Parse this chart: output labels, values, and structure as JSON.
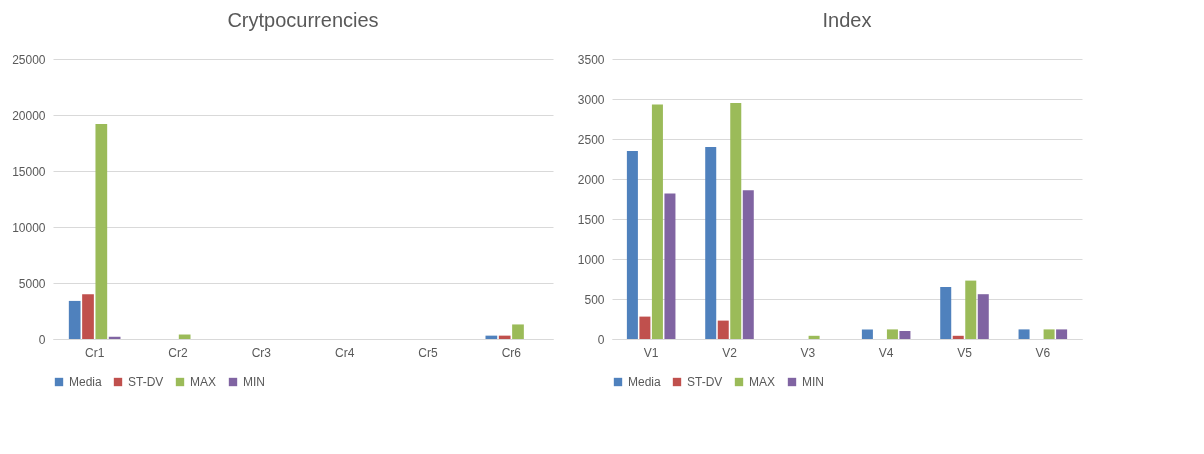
{
  "chart_data": [
    {
      "type": "bar",
      "title": "Crytpocurrencies",
      "categories": [
        "Cr1",
        "Cr2",
        "Cr3",
        "Cr4",
        "Cr5",
        "Cr6"
      ],
      "ylim": [
        0,
        25000
      ],
      "yticks": [
        0,
        5000,
        10000,
        15000,
        20000,
        25000
      ],
      "grid": "y",
      "legend": "bottom",
      "series": [
        {
          "name": "Media",
          "color": "#4f81bd",
          "values": [
            3400,
            0,
            0,
            0,
            0,
            300
          ]
        },
        {
          "name": "ST-DV",
          "color": "#c0504d",
          "values": [
            4000,
            0,
            0,
            0,
            0,
            300
          ]
        },
        {
          "name": "MAX",
          "color": "#9bbb59",
          "values": [
            19200,
            400,
            0,
            0,
            0,
            1300
          ]
        },
        {
          "name": "MIN",
          "color": "#8064a2",
          "values": [
            200,
            0,
            0,
            0,
            0,
            0
          ]
        }
      ]
    },
    {
      "type": "bar",
      "title": "Index",
      "categories": [
        "V1",
        "V2",
        "V3",
        "V4",
        "V5",
        "V6"
      ],
      "ylim": [
        0,
        3500
      ],
      "yticks": [
        0,
        500,
        1000,
        1500,
        2000,
        2500,
        3000,
        3500
      ],
      "grid": "y",
      "legend": "bottom",
      "series": [
        {
          "name": "Media",
          "color": "#4f81bd",
          "values": [
            2350,
            2400,
            0,
            120,
            650,
            120
          ]
        },
        {
          "name": "ST-DV",
          "color": "#c0504d",
          "values": [
            280,
            230,
            0,
            0,
            40,
            0
          ]
        },
        {
          "name": "MAX",
          "color": "#9bbb59",
          "values": [
            2930,
            2950,
            40,
            120,
            730,
            120
          ]
        },
        {
          "name": "MIN",
          "color": "#8064a2",
          "values": [
            1820,
            1860,
            0,
            100,
            560,
            120
          ]
        }
      ]
    }
  ]
}
